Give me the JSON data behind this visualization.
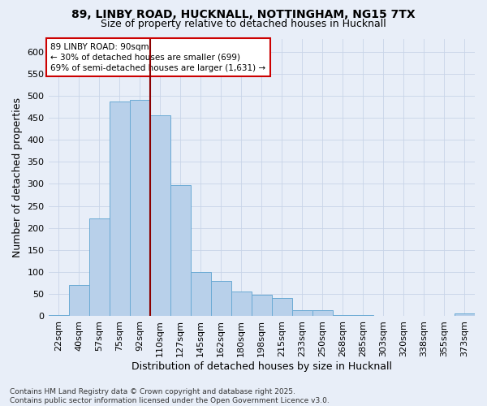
{
  "title_line1": "89, LINBY ROAD, HUCKNALL, NOTTINGHAM, NG15 7TX",
  "title_line2": "Size of property relative to detached houses in Hucknall",
  "xlabel": "Distribution of detached houses by size in Hucknall",
  "ylabel": "Number of detached properties",
  "footnote1": "Contains HM Land Registry data © Crown copyright and database right 2025.",
  "footnote2": "Contains public sector information licensed under the Open Government Licence v3.0.",
  "annotation_title": "89 LINBY ROAD: 90sqm",
  "annotation_line2": "← 30% of detached houses are smaller (699)",
  "annotation_line3": "69% of semi-detached houses are larger (1,631) →",
  "bar_labels": [
    "22sqm",
    "40sqm",
    "57sqm",
    "75sqm",
    "92sqm",
    "110sqm",
    "127sqm",
    "145sqm",
    "162sqm",
    "180sqm",
    "198sqm",
    "215sqm",
    "233sqm",
    "250sqm",
    "268sqm",
    "285sqm",
    "303sqm",
    "320sqm",
    "338sqm",
    "355sqm",
    "373sqm"
  ],
  "bar_values": [
    2,
    70,
    222,
    487,
    490,
    455,
    298,
    100,
    80,
    55,
    48,
    40,
    13,
    13,
    2,
    2,
    0,
    0,
    0,
    0,
    5
  ],
  "bar_color": "#b8d0ea",
  "bar_edge_color": "#6aaad4",
  "grid_color": "#c8d4e8",
  "bg_color": "#e8eef8",
  "vline_x": 4.5,
  "vline_color": "#8b0000",
  "annotation_box_facecolor": "#ffffff",
  "annotation_box_edgecolor": "#cc0000",
  "ylim": [
    0,
    630
  ],
  "yticks": [
    0,
    50,
    100,
    150,
    200,
    250,
    300,
    350,
    400,
    450,
    500,
    550,
    600
  ],
  "title_fontsize": 10,
  "subtitle_fontsize": 9,
  "xlabel_fontsize": 9,
  "ylabel_fontsize": 9,
  "tick_fontsize": 8,
  "annot_fontsize": 7.5,
  "footnote_fontsize": 6.5
}
